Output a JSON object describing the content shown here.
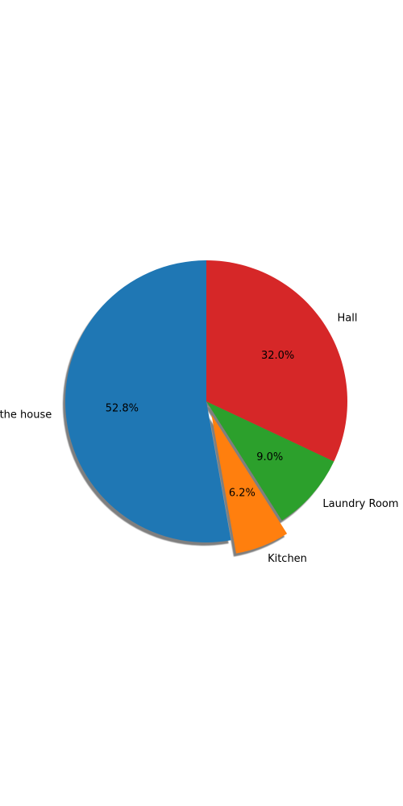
{
  "chart_data": {
    "type": "pie",
    "start_angle_deg": 90,
    "direction": "counterclockwise",
    "shadow": true,
    "slices": [
      {
        "label": "the house",
        "value": 52.8,
        "pct_label": "52.8%",
        "color": "#1f77b4",
        "exploded": false
      },
      {
        "label": "Kitchen",
        "value": 6.2,
        "pct_label": "6.2%",
        "color": "#ff7f0e",
        "exploded": true
      },
      {
        "label": "Laundry Room",
        "value": 9.0,
        "pct_label": "9.0%",
        "color": "#2ca02c",
        "exploded": false
      },
      {
        "label": "Hall",
        "value": 32.0,
        "pct_label": "32.0%",
        "color": "#d62728",
        "exploded": false
      }
    ]
  }
}
